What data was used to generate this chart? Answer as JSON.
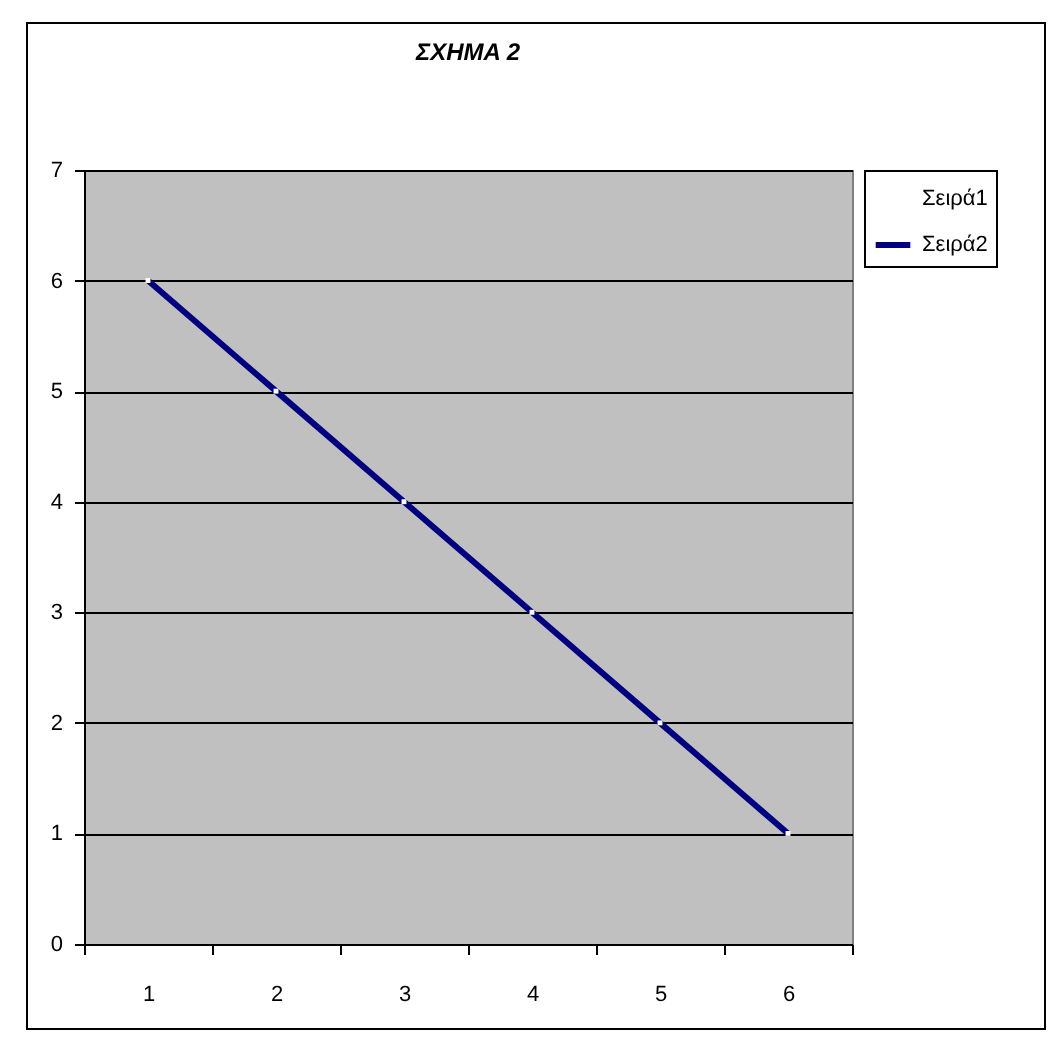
{
  "chart_data": {
    "type": "line",
    "title": "ΣΧΗΜΑ 2",
    "categories": [
      "1",
      "2",
      "3",
      "4",
      "5",
      "6"
    ],
    "series": [
      {
        "name": "Σειρά1",
        "values": [
          null,
          null,
          null,
          null,
          null,
          null
        ]
      },
      {
        "name": "Σειρά2",
        "color": "#000080",
        "values": [
          6,
          5,
          4,
          3,
          2,
          1
        ]
      }
    ],
    "ylim": [
      0,
      7
    ],
    "yticks": [
      0,
      1,
      2,
      3,
      4,
      5,
      6,
      7
    ],
    "grid": "y",
    "legend": "right",
    "marker": "square",
    "line_style": "solid"
  }
}
